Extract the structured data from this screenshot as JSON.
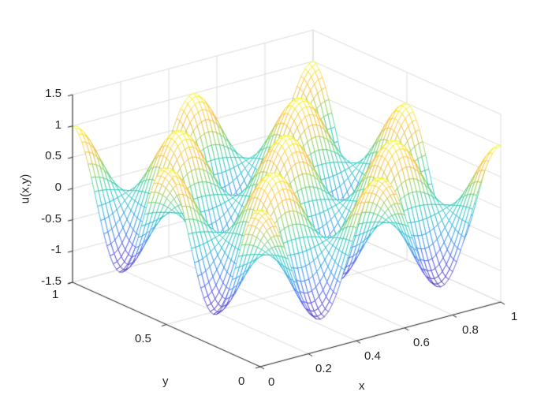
{
  "chart_data": {
    "type": "surface-mesh",
    "title": "",
    "function_approx": "u(x,y) = cos(4*pi*x) * cos(4*pi*y)",
    "xlabel": "x",
    "ylabel": "y",
    "zlabel": "u(x,y)",
    "xlim": [
      0,
      1
    ],
    "ylim": [
      0,
      1
    ],
    "zlim": [
      -1.5,
      1.5
    ],
    "x_ticks": [
      "0",
      "0.2",
      "0.4",
      "0.6",
      "0.8",
      "1"
    ],
    "y_ticks": [
      "0",
      "0.5",
      "1"
    ],
    "z_ticks": [
      "-1.5",
      "-1",
      "-0.5",
      "0",
      "0.5",
      "1",
      "1.5"
    ],
    "grid": true,
    "colormap": "parula",
    "mesh_resolution": 60,
    "colors": {
      "axis": "#262626",
      "grid": "#dcdcdc",
      "low": "#3e26a8",
      "mid": "#21c3b2",
      "high": "#f9fb0e"
    }
  }
}
